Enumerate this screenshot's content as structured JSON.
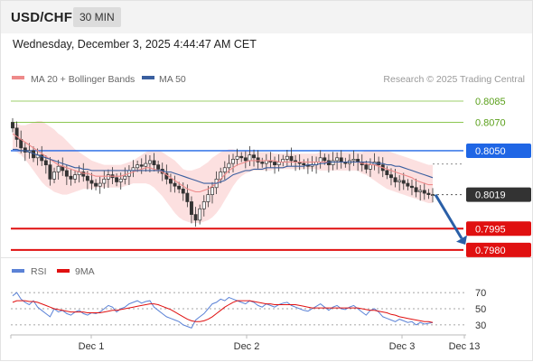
{
  "header": {
    "pair": "USD/CHF",
    "timeframe": "30 MIN"
  },
  "datetime": "Wednesday, December 3, 2025 4:44:47 AM CET",
  "legend": {
    "ma20_label": "MA 20 + Bollinger Bands",
    "ma50_label": "MA 50",
    "credit": "Research © 2025 Trading Central"
  },
  "rsi_legend": {
    "rsi_label": "RSI",
    "ma_label": "9MA"
  },
  "colors": {
    "bullish_candle": "#ffffff",
    "bearish_candle": "#333333",
    "ma20": "#ee8a8a",
    "bollinger_fill": "#fbdada",
    "ma50": "#3a5f9f",
    "resistance_target": "#7cbf3a",
    "pivot": "#1f66e5",
    "support": "#e01010",
    "last_price": "#333333",
    "rsi": "#5b82d6",
    "rsi_ma": "#e01010",
    "arrow": "#2a5fa7"
  },
  "chart_data": {
    "type": "candlestick",
    "instrument": "USD/CHF",
    "interval": "30 MIN",
    "ylim": [
      0.7978,
      0.8092
    ],
    "x_ticks": [
      "Dec 1",
      "Dec 2",
      "Dec 3",
      "Dec 13"
    ],
    "levels": [
      {
        "value": 0.8085,
        "label": "0.8085",
        "kind": "target"
      },
      {
        "value": 0.807,
        "label": "0.8070",
        "kind": "target"
      },
      {
        "value": 0.805,
        "label": "0.8050",
        "kind": "pivot"
      },
      {
        "value": 0.8019,
        "label": "0.8019",
        "kind": "last"
      },
      {
        "value": 0.7995,
        "label": "0.7995",
        "kind": "support"
      },
      {
        "value": 0.798,
        "label": "0.7980",
        "kind": "support"
      }
    ],
    "projection": {
      "from": 0.8019,
      "to": 0.7983
    },
    "closes": [
      0.8066,
      0.8058,
      0.8052,
      0.8049,
      0.805,
      0.8045,
      0.8047,
      0.8043,
      0.804,
      0.803,
      0.8035,
      0.8039,
      0.8036,
      0.8032,
      0.803,
      0.8033,
      0.8035,
      0.8032,
      0.8029,
      0.8027,
      0.8025,
      0.8027,
      0.803,
      0.8033,
      0.8031,
      0.8028,
      0.803,
      0.8032,
      0.8036,
      0.8038,
      0.804,
      0.8039,
      0.8041,
      0.8043,
      0.804,
      0.8037,
      0.8034,
      0.803,
      0.8027,
      0.8025,
      0.8023,
      0.802,
      0.8014,
      0.8005,
      0.8001,
      0.8009,
      0.8014,
      0.8019,
      0.8024,
      0.803,
      0.8035,
      0.8038,
      0.8041,
      0.8044,
      0.8046,
      0.8045,
      0.8043,
      0.8047,
      0.8045,
      0.8042,
      0.8041,
      0.8043,
      0.8042,
      0.804,
      0.8042,
      0.8044,
      0.8046,
      0.8043,
      0.8042,
      0.8041,
      0.804,
      0.8039,
      0.804,
      0.8042,
      0.8045,
      0.8043,
      0.804,
      0.8043,
      0.8045,
      0.8042,
      0.8041,
      0.8043,
      0.8044,
      0.8042,
      0.804,
      0.8037,
      0.804,
      0.8042,
      0.804,
      0.8036,
      0.8033,
      0.8031,
      0.8028,
      0.8029,
      0.8027,
      0.8025,
      0.8024,
      0.8021,
      0.8022,
      0.802,
      0.8019,
      0.8019
    ],
    "ma20": [
      0.8062,
      0.806,
      0.8058,
      0.8056,
      0.8054,
      0.8052,
      0.805,
      0.8048,
      0.8046,
      0.8044,
      0.8042,
      0.804,
      0.8039,
      0.8038,
      0.8037,
      0.8036,
      0.8035,
      0.8034,
      0.8034,
      0.8033,
      0.8032,
      0.8032,
      0.8032,
      0.8032,
      0.8032,
      0.8032,
      0.8032,
      0.8033,
      0.8034,
      0.8035,
      0.8036,
      0.8037,
      0.8038,
      0.8038,
      0.8037,
      0.8036,
      0.8035,
      0.8033,
      0.8031,
      0.8029,
      0.8027,
      0.8025,
      0.8023,
      0.8022,
      0.8021,
      0.8021,
      0.8022,
      0.8023,
      0.8025,
      0.8027,
      0.803,
      0.8033,
      0.8036,
      0.8038,
      0.804,
      0.8041,
      0.8042,
      0.8043,
      0.8043,
      0.8043,
      0.8043,
      0.8043,
      0.8043,
      0.8043,
      0.8042,
      0.8042,
      0.8042,
      0.8042,
      0.8042,
      0.8042,
      0.8042,
      0.8042,
      0.8042,
      0.8042,
      0.8042,
      0.8042,
      0.8042,
      0.8042,
      0.8042,
      0.8042,
      0.8042,
      0.8042,
      0.8042,
      0.8042,
      0.8041,
      0.8041,
      0.804,
      0.804,
      0.8039,
      0.8038,
      0.8037,
      0.8036,
      0.8035,
      0.8034,
      0.8033,
      0.8032,
      0.8031,
      0.8029,
      0.8028,
      0.8027,
      0.8026,
      0.8026
    ],
    "bb_upper": [
      0.807,
      0.8069,
      0.8068,
      0.8068,
      0.8069,
      0.807,
      0.8071,
      0.8071,
      0.8069,
      0.8067,
      0.8065,
      0.8062,
      0.806,
      0.8057,
      0.8054,
      0.8051,
      0.8049,
      0.8047,
      0.8045,
      0.8043,
      0.8042,
      0.8041,
      0.804,
      0.804,
      0.804,
      0.804,
      0.804,
      0.8041,
      0.8042,
      0.8043,
      0.8045,
      0.8047,
      0.8049,
      0.805,
      0.805,
      0.805,
      0.8049,
      0.8047,
      0.8045,
      0.8043,
      0.804,
      0.8037,
      0.8036,
      0.8036,
      0.8037,
      0.8038,
      0.804,
      0.8042,
      0.8045,
      0.8047,
      0.8049,
      0.805,
      0.8051,
      0.8051,
      0.805,
      0.805,
      0.805,
      0.805,
      0.8049,
      0.8049,
      0.8049,
      0.8049,
      0.8049,
      0.8048,
      0.8048,
      0.8048,
      0.8048,
      0.8048,
      0.8048,
      0.8048,
      0.8048,
      0.8048,
      0.8048,
      0.8048,
      0.8049,
      0.8049,
      0.8049,
      0.8049,
      0.8049,
      0.8049,
      0.8049,
      0.8049,
      0.8049,
      0.8049,
      0.8049,
      0.805,
      0.805,
      0.805,
      0.805,
      0.805,
      0.805,
      0.8049,
      0.8048,
      0.8047,
      0.8046,
      0.8045,
      0.8044,
      0.8043,
      0.8042,
      0.8041,
      0.804,
      0.804
    ],
    "bb_lower": [
      0.805,
      0.8049,
      0.8047,
      0.8044,
      0.804,
      0.8036,
      0.8032,
      0.8028,
      0.8025,
      0.8023,
      0.8021,
      0.802,
      0.8019,
      0.8019,
      0.802,
      0.8021,
      0.8022,
      0.8023,
      0.8023,
      0.8023,
      0.8024,
      0.8024,
      0.8024,
      0.8024,
      0.8024,
      0.8024,
      0.8024,
      0.8025,
      0.8026,
      0.8027,
      0.8027,
      0.8027,
      0.8027,
      0.8026,
      0.8024,
      0.8021,
      0.8018,
      0.8014,
      0.801,
      0.8006,
      0.8003,
      0.8001,
      0.8,
      0.7999,
      0.7999,
      0.7999,
      0.8,
      0.8001,
      0.8003,
      0.8006,
      0.801,
      0.8015,
      0.802,
      0.8025,
      0.8029,
      0.8032,
      0.8034,
      0.8035,
      0.8036,
      0.8036,
      0.8036,
      0.8036,
      0.8036,
      0.8037,
      0.8037,
      0.8037,
      0.8037,
      0.8037,
      0.8037,
      0.8037,
      0.8037,
      0.8037,
      0.8037,
      0.8037,
      0.8036,
      0.8036,
      0.8036,
      0.8036,
      0.8036,
      0.8036,
      0.8036,
      0.8036,
      0.8036,
      0.8036,
      0.8034,
      0.8033,
      0.8031,
      0.8029,
      0.8027,
      0.8025,
      0.8023,
      0.8022,
      0.8021,
      0.802,
      0.8019,
      0.8018,
      0.8017,
      0.8016,
      0.8015,
      0.8014,
      0.8013,
      0.8013
    ],
    "ma50": [
      0.8051,
      0.8051,
      0.805,
      0.805,
      0.8049,
      0.8048,
      0.8047,
      0.8046,
      0.8045,
      0.8044,
      0.8043,
      0.8042,
      0.8041,
      0.804,
      0.8039,
      0.8038,
      0.8038,
      0.8037,
      0.8037,
      0.8036,
      0.8036,
      0.8036,
      0.8036,
      0.8036,
      0.8036,
      0.8036,
      0.8036,
      0.8036,
      0.8036,
      0.8036,
      0.8036,
      0.8036,
      0.8036,
      0.8036,
      0.8036,
      0.8036,
      0.8036,
      0.8035,
      0.8035,
      0.8034,
      0.8033,
      0.8032,
      0.8031,
      0.803,
      0.8029,
      0.8028,
      0.8027,
      0.8027,
      0.8027,
      0.8027,
      0.8028,
      0.8029,
      0.8031,
      0.8033,
      0.8034,
      0.8035,
      0.8036,
      0.8036,
      0.8037,
      0.8037,
      0.8037,
      0.8038,
      0.8038,
      0.8038,
      0.8038,
      0.8038,
      0.8039,
      0.8039,
      0.8039,
      0.8039,
      0.8039,
      0.804,
      0.804,
      0.804,
      0.8041,
      0.8041,
      0.8042,
      0.8042,
      0.8042,
      0.8042,
      0.8042,
      0.8042,
      0.8042,
      0.8042,
      0.8042,
      0.8042,
      0.8042,
      0.8041,
      0.8041,
      0.8041,
      0.804,
      0.804,
      0.8039,
      0.8039,
      0.8038,
      0.8037,
      0.8036,
      0.8035,
      0.8034,
      0.8033,
      0.8032,
      0.8031
    ],
    "rsi": {
      "ylim": [
        22,
        78
      ],
      "ticks": [
        70,
        50,
        30
      ],
      "values": [
        66,
        70,
        62,
        58,
        55,
        60,
        52,
        48,
        44,
        40,
        50,
        46,
        48,
        44,
        42,
        46,
        48,
        44,
        42,
        45,
        44,
        46,
        50,
        54,
        52,
        46,
        50,
        52,
        56,
        58,
        60,
        57,
        59,
        60,
        52,
        48,
        44,
        40,
        38,
        36,
        34,
        30,
        28,
        26,
        36,
        40,
        44,
        50,
        56,
        58,
        62,
        60,
        64,
        62,
        60,
        58,
        56,
        60,
        58,
        54,
        52,
        56,
        54,
        52,
        55,
        57,
        58,
        54,
        52,
        50,
        48,
        47,
        50,
        53,
        56,
        52,
        48,
        52,
        54,
        50,
        49,
        52,
        54,
        50,
        46,
        42,
        48,
        50,
        46,
        40,
        38,
        36,
        34,
        37,
        35,
        33,
        34,
        30,
        33,
        31,
        32,
        33
      ],
      "ma": [
        58,
        60,
        60,
        60,
        59,
        59,
        58,
        56,
        54,
        52,
        50,
        49,
        48,
        47,
        46,
        46,
        46,
        46,
        45,
        45,
        45,
        45,
        46,
        47,
        48,
        48,
        49,
        50,
        51,
        52,
        53,
        54,
        55,
        56,
        56,
        55,
        53,
        51,
        49,
        46,
        43,
        40,
        37,
        35,
        34,
        34,
        35,
        37,
        40,
        44,
        48,
        52,
        55,
        58,
        60,
        60,
        60,
        60,
        59,
        58,
        57,
        56,
        56,
        55,
        55,
        55,
        55,
        55,
        55,
        54,
        53,
        52,
        51,
        51,
        51,
        51,
        51,
        51,
        51,
        51,
        51,
        51,
        51,
        51,
        50,
        49,
        48,
        48,
        47,
        46,
        45,
        43,
        42,
        40,
        39,
        38,
        37,
        36,
        35,
        34,
        34,
        33
      ]
    }
  }
}
